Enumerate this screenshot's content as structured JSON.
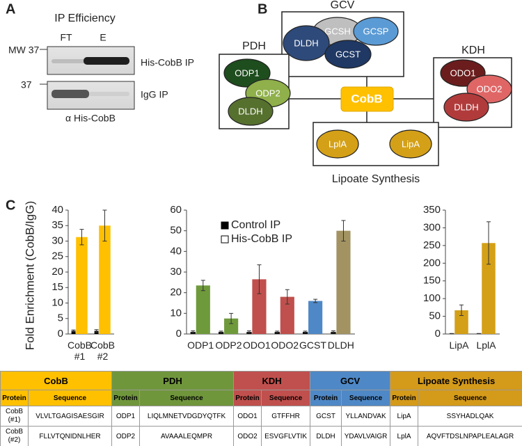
{
  "panel_a": {
    "label": "A",
    "title": "IP Efficiency",
    "lanes": [
      "FT",
      "E"
    ],
    "markers": [
      "MW 37",
      "37"
    ],
    "blots": [
      "His-CobB IP",
      "IgG IP"
    ],
    "antibody": "α His-CobB"
  },
  "panel_b": {
    "label": "B",
    "center": "CobB",
    "groups": [
      {
        "name": "GCV",
        "nodes": [
          "GCSH",
          "GCSP",
          "DLDH",
          "GCST"
        ]
      },
      {
        "name": "PDH",
        "nodes": [
          "ODP1",
          "ODP2",
          "DLDH"
        ]
      },
      {
        "name": "KDH",
        "nodes": [
          "ODO1",
          "ODO2",
          "DLDH"
        ]
      },
      {
        "name": "Lipoate Synthesis",
        "nodes": [
          "LplA",
          "LipA"
        ]
      }
    ]
  },
  "panel_c": {
    "label": "C",
    "y_label": "Fold Enrichment (CobB/IgG)"
  },
  "chart_data": [
    {
      "type": "bar",
      "categories": [
        "CobB #1",
        "CobB #2"
      ],
      "series": [
        {
          "color": "#000000",
          "values": [
            1,
            1
          ],
          "errors": [
            0.3,
            0.4
          ]
        },
        {
          "color": "#ffffff",
          "colors": [
            "#ffc000",
            "#ffc000"
          ],
          "values": [
            31.3,
            35
          ],
          "errors": [
            2.5,
            5
          ]
        }
      ],
      "ylim": [
        0,
        40
      ],
      "yticks": [
        0,
        5,
        10,
        15,
        20,
        25,
        30,
        35,
        40
      ]
    },
    {
      "type": "bar",
      "categories": [
        "ODP1",
        "ODP2",
        "ODO1",
        "ODO2",
        "GCST",
        "DLDH"
      ],
      "series": [
        {
          "name": "Control IP",
          "color": "#000000",
          "values": [
            1,
            1,
            1,
            1,
            1,
            1
          ],
          "errors": [
            0.5,
            0.4,
            0.5,
            0.4,
            0.4,
            0.5
          ]
        },
        {
          "name": "His-CobB IP",
          "color": "#ffffff",
          "colors": [
            "#6f9a3c",
            "#6f9a3c",
            "#c0504d",
            "#c0504d",
            "#4f88c6",
            "#a39363"
          ],
          "values": [
            23.5,
            7.5,
            26.5,
            18,
            16,
            50
          ],
          "errors": [
            2.5,
            2.5,
            7,
            3.5,
            0.8,
            5
          ]
        }
      ],
      "ylim": [
        0,
        60
      ],
      "yticks": [
        0,
        10,
        20,
        30,
        40,
        50,
        60
      ],
      "legend": "top-left"
    },
    {
      "type": "bar",
      "categories": [
        "LipA",
        "LplA"
      ],
      "series": [
        {
          "color": "#000000",
          "values": [
            1,
            1
          ],
          "errors": [
            0.5,
            0.5
          ]
        },
        {
          "color": "#ffffff",
          "colors": [
            "#d4a017",
            "#d4a017"
          ],
          "values": [
            67,
            257
          ],
          "errors": [
            15,
            60
          ]
        }
      ],
      "ylim": [
        0,
        350
      ],
      "yticks": [
        0,
        50,
        100,
        150,
        200,
        250,
        300,
        350
      ]
    }
  ],
  "table": {
    "groups": [
      {
        "name": "CobB",
        "color": "#ffc000"
      },
      {
        "name": "PDH",
        "color": "#70963c"
      },
      {
        "name": "KDH",
        "color": "#c0504d"
      },
      {
        "name": "GCV",
        "color": "#4f88c6"
      },
      {
        "name": "Lipoate Synthesis",
        "color": "#d49a1a"
      }
    ],
    "columns": [
      "Protein",
      "Sequence"
    ],
    "rows": [
      [
        "CobB (#1)",
        "VLVLTGAGISAESGIR",
        "ODP1",
        "LIQLMNETVDGDYQTFK",
        "ODO1",
        "GTFFHR",
        "GCST",
        "YLLANDVAK",
        "LipA",
        "SSYHADLQAK"
      ],
      [
        "CobB (#2)",
        "FLLVTQNIDNLHER",
        "ODP2",
        "AVAAALEQMPR",
        "ODO2",
        "ESVGFLVTIK",
        "DLDH",
        "YDAVLVAIGR",
        "LplA",
        "AQVFTDSLNPAPLEALAGR"
      ]
    ]
  }
}
